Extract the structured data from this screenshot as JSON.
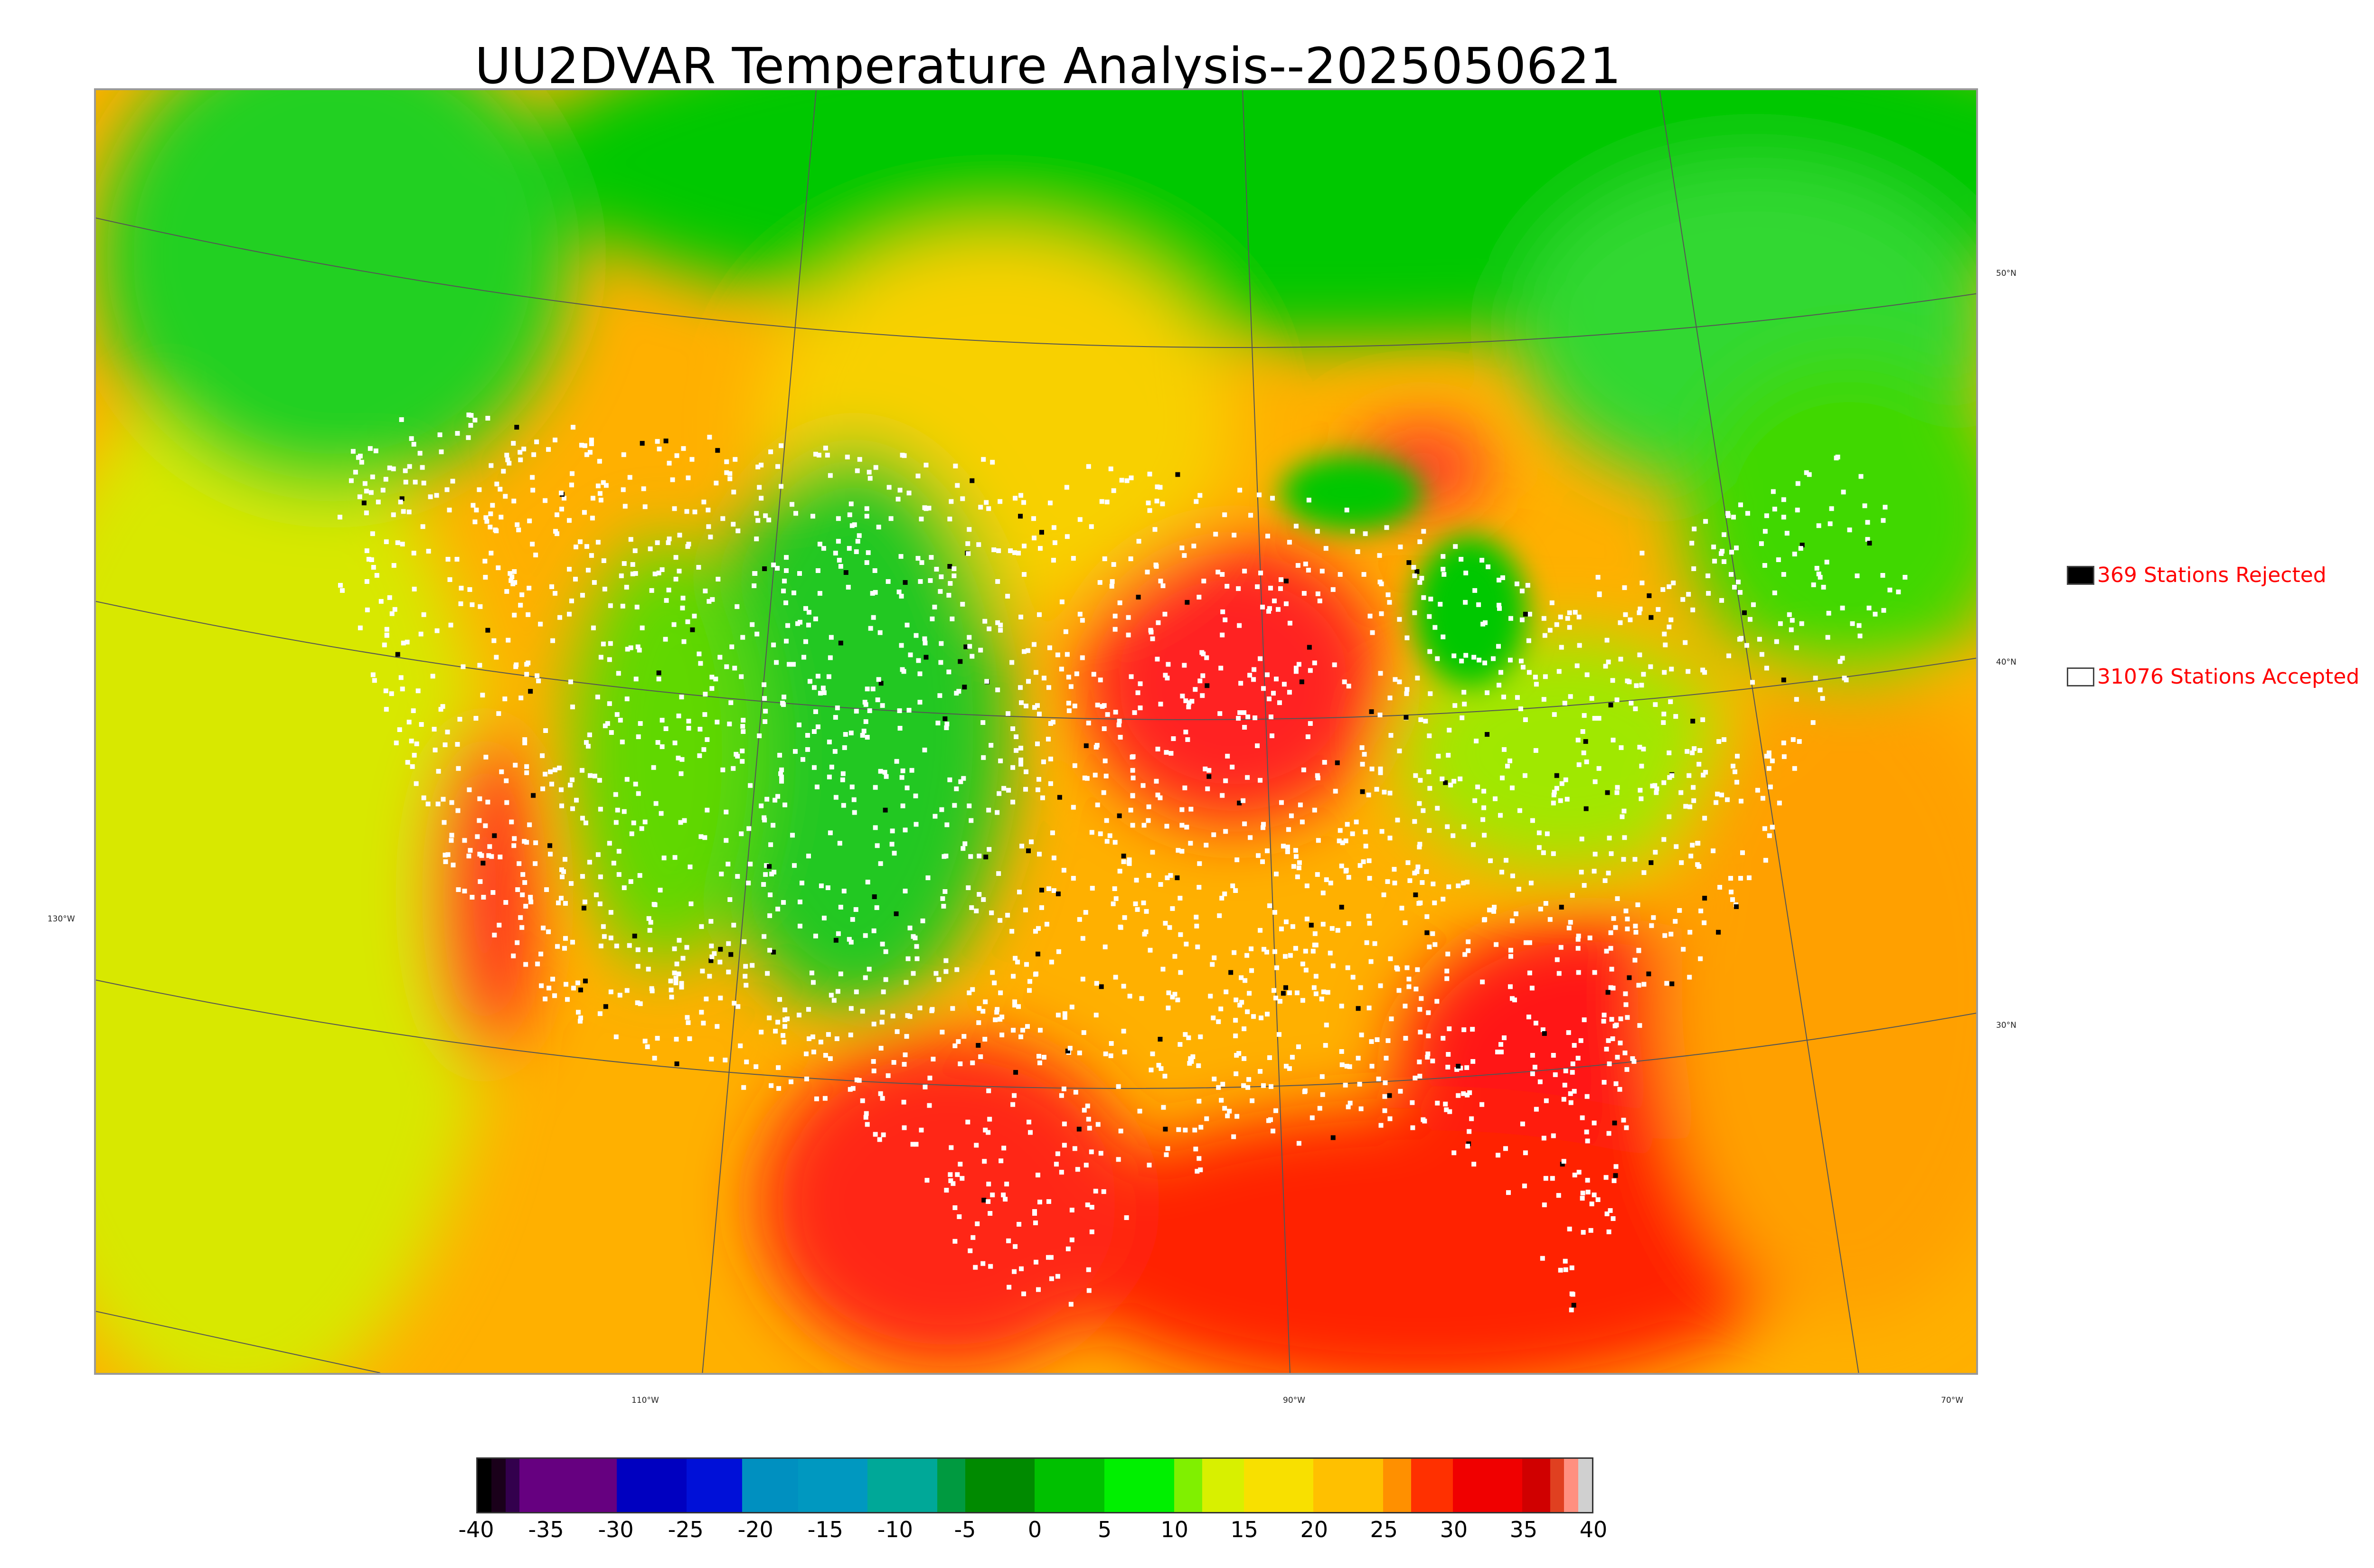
{
  "title": "UU2DVAR Temperature Analysis--2025050621",
  "map": {
    "lat_labels": [
      "50°N",
      "40°N",
      "30°N"
    ],
    "lon_labels_left": [
      "130°W"
    ],
    "lon_labels_bottom": [
      "110°W",
      "90°W",
      "70°W"
    ],
    "color_regions": {
      "canada_north": "#00cc00",
      "west_mountains": "#22cc22",
      "plains": "#f0d800",
      "midwest_hot": "#ff2020",
      "southeast_hot": "#ff2020",
      "gulf": "#ff2a00",
      "pacific": "#cce800",
      "atlantic": "#ffaa00",
      "great_lakes": "#00cc00",
      "mexico": "#ff4000"
    },
    "station_marker_colors": {
      "accepted": "#ffffff",
      "rejected": "#000000"
    }
  },
  "legend": {
    "rejected": {
      "label": "369 Stations Rejected",
      "swatch_color": "#000000"
    },
    "accepted": {
      "label": "31076 Stations Accepted",
      "swatch_color": "#ffffff"
    }
  },
  "colorbar": {
    "min": -40,
    "max": 40,
    "tick_labels": [
      "-40",
      "-35",
      "-30",
      "-25",
      "-20",
      "-15",
      "-10",
      "-5",
      "0",
      "5",
      "10",
      "15",
      "20",
      "25",
      "30",
      "35",
      "40"
    ],
    "segments": [
      {
        "from": -40,
        "to": -39,
        "color": "#000000"
      },
      {
        "from": -39,
        "to": -38,
        "color": "#1a001a"
      },
      {
        "from": -38,
        "to": -37,
        "color": "#33004d"
      },
      {
        "from": -37,
        "to": -30,
        "color": "#660080"
      },
      {
        "from": -30,
        "to": -25,
        "color": "#0000c0"
      },
      {
        "from": -25,
        "to": -21,
        "color": "#0010d8"
      },
      {
        "from": -21,
        "to": -17,
        "color": "#0090c0"
      },
      {
        "from": -17,
        "to": -12,
        "color": "#0098c0"
      },
      {
        "from": -12,
        "to": -7,
        "color": "#00a898"
      },
      {
        "from": -7,
        "to": -5,
        "color": "#009a40"
      },
      {
        "from": -5,
        "to": 0,
        "color": "#008a00"
      },
      {
        "from": 0,
        "to": 5,
        "color": "#00c000"
      },
      {
        "from": 5,
        "to": 10,
        "color": "#00f000"
      },
      {
        "from": 10,
        "to": 12,
        "color": "#80f000"
      },
      {
        "from": 12,
        "to": 15,
        "color": "#d8f000"
      },
      {
        "from": 15,
        "to": 20,
        "color": "#f8e000"
      },
      {
        "from": 20,
        "to": 25,
        "color": "#ffc000"
      },
      {
        "from": 25,
        "to": 27,
        "color": "#ff9000"
      },
      {
        "from": 27,
        "to": 30,
        "color": "#ff3000"
      },
      {
        "from": 30,
        "to": 35,
        "color": "#f00000"
      },
      {
        "from": 35,
        "to": 37,
        "color": "#d00000"
      },
      {
        "from": 37,
        "to": 38,
        "color": "#e04020"
      },
      {
        "from": 38,
        "to": 39,
        "color": "#ff9080"
      },
      {
        "from": 39,
        "to": 40,
        "color": "#d0d0d0"
      }
    ]
  }
}
